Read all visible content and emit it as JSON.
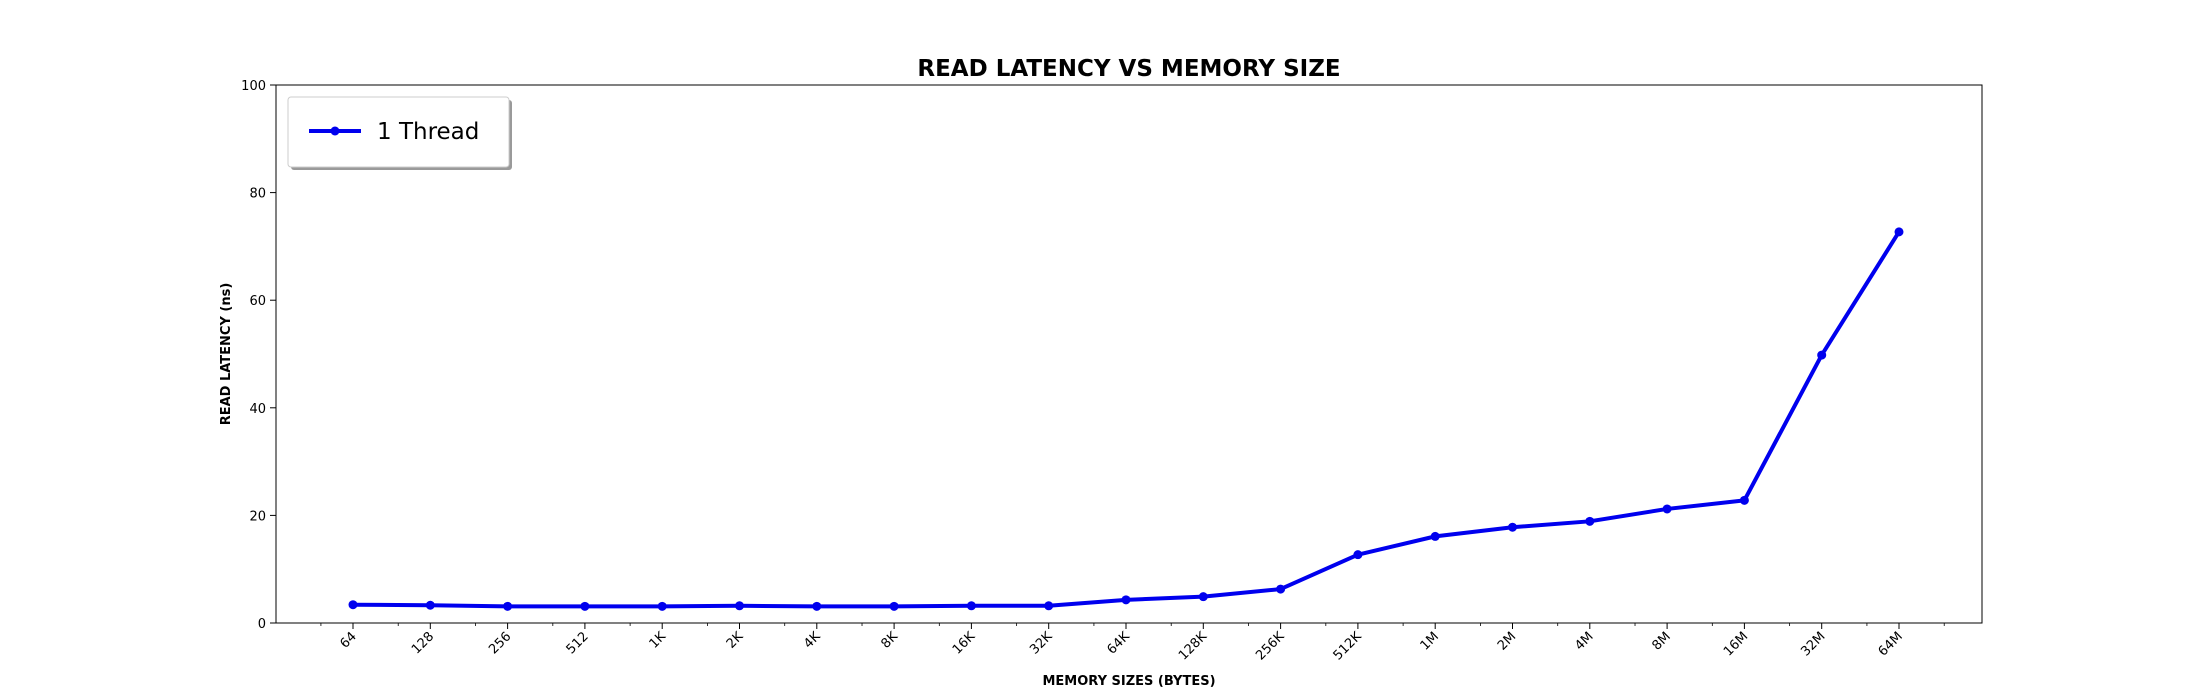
{
  "chart_data": {
    "type": "line",
    "title": "READ LATENCY VS MEMORY SIZE",
    "xlabel": "MEMORY SIZES (BYTES)",
    "ylabel": "READ LATENCY (ns)",
    "x_scale": "log2",
    "ylim": [
      0,
      100
    ],
    "yticks": [
      0,
      20,
      40,
      60,
      80,
      100
    ],
    "grid": false,
    "legend_position": "top-left",
    "categories": [
      "64",
      "128",
      "256",
      "512",
      "1K",
      "2K",
      "4K",
      "8K",
      "16K",
      "32K",
      "64K",
      "128K",
      "256K",
      "512K",
      "1M",
      "2M",
      "4M",
      "8M",
      "16M",
      "32M",
      "64M"
    ],
    "series": [
      {
        "name": "1 Thread",
        "color": "#0000ee",
        "marker": "circle",
        "values": [
          3.4,
          3.3,
          3.1,
          3.1,
          3.1,
          3.2,
          3.1,
          3.1,
          3.2,
          3.2,
          4.3,
          4.9,
          6.3,
          12.7,
          16.1,
          17.8,
          18.9,
          21.2,
          22.8,
          49.8,
          72.7
        ]
      }
    ]
  }
}
